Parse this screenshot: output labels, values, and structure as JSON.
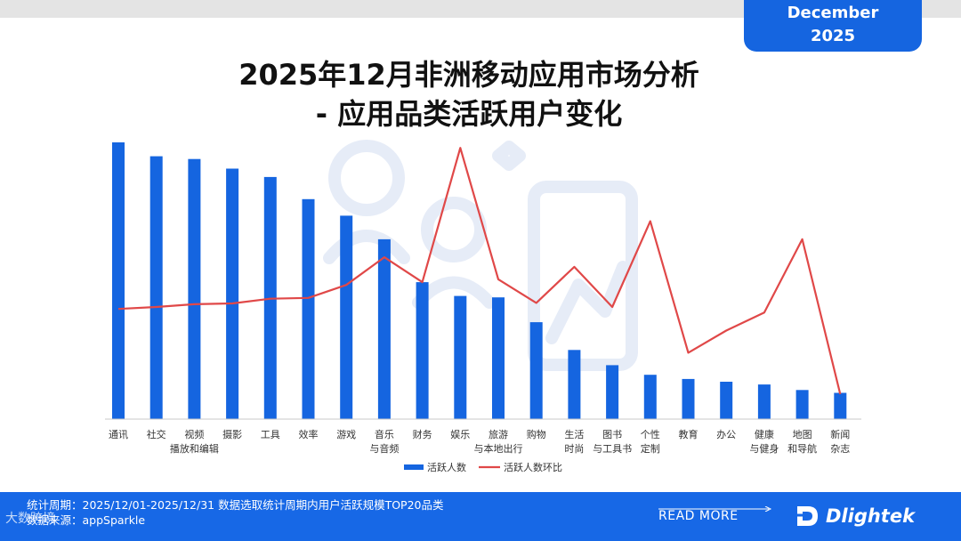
{
  "badge": {
    "line1": "December",
    "line2": "2025"
  },
  "title": {
    "line1": "2025年12月非洲移动应用市场分析",
    "line2": "- 应用品类活跃用户变化"
  },
  "chart_data": {
    "type": "bar",
    "categories": [
      [
        "通讯"
      ],
      [
        "社交"
      ],
      [
        "视频",
        "播放和编辑"
      ],
      [
        "摄影"
      ],
      [
        "工具"
      ],
      [
        "效率"
      ],
      [
        "游戏"
      ],
      [
        "音乐",
        "与音频"
      ],
      [
        "财务"
      ],
      [
        "娱乐"
      ],
      [
        "旅游",
        "与本地出行"
      ],
      [
        "购物"
      ],
      [
        "生活",
        "时尚"
      ],
      [
        "图书",
        "与工具书"
      ],
      [
        "个性",
        "定制"
      ],
      [
        "教育"
      ],
      [
        "办公"
      ],
      [
        "健康",
        "与健身"
      ],
      [
        "地图",
        "和导航"
      ],
      [
        "新闻",
        "杂志"
      ]
    ],
    "series": [
      {
        "name": "活跃人数",
        "type": "bar",
        "color": "#1565e0",
        "values": [
          100,
          95,
          94,
          90.5,
          87.5,
          79.5,
          73.5,
          65,
          49.5,
          44.5,
          44,
          35,
          25,
          19.5,
          16,
          14.5,
          13.5,
          12.5,
          10.5,
          9.5
        ]
      },
      {
        "name": "活跃人数环比",
        "type": "line",
        "color": "#e04848",
        "values": [
          39.8,
          40.5,
          41.5,
          41.8,
          43.5,
          43.8,
          48.5,
          58.5,
          49.5,
          98,
          50.5,
          42,
          55,
          40.5,
          71.5,
          24,
          32,
          38.5,
          65,
          9
        ]
      }
    ],
    "legend_position": "bottom-center",
    "grid": false,
    "axes": {
      "y_ticks_shown": false,
      "x_baseline": true
    }
  },
  "footer": {
    "stat_line": "统计周期：2025/12/01-2025/12/31 数据选取统计周期内用户活跃规模TOP20品类",
    "source_line": "数据来源：appSparkle",
    "read_more": "READ MORE",
    "brand": "Dlightek",
    "watermark": "大数跨境"
  }
}
